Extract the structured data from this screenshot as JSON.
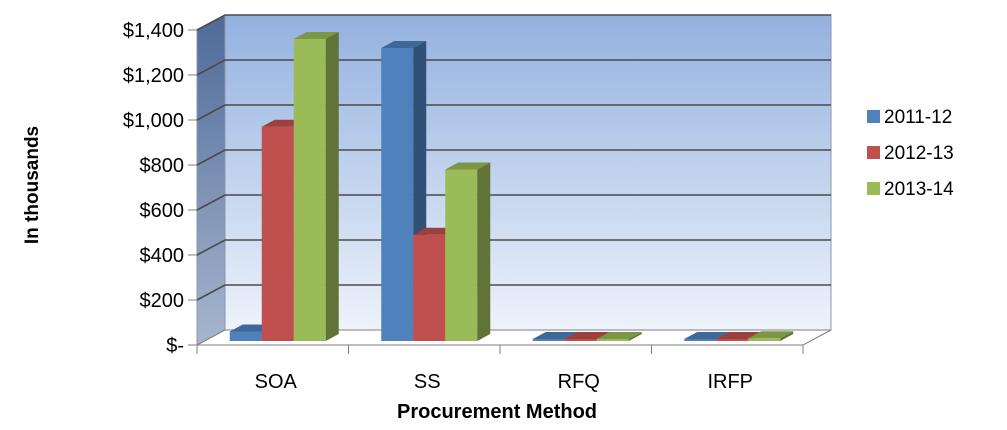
{
  "chart_data": {
    "type": "bar",
    "title": "",
    "xlabel": "Procurement Method",
    "ylabel": "In thousands",
    "categories": [
      "SOA",
      "SS",
      "RFQ",
      "IRFP"
    ],
    "series": [
      {
        "name": "2011-12",
        "values": [
          60,
          1320,
          0,
          0
        ],
        "color": "#4F81BD"
      },
      {
        "name": "2012-13",
        "values": [
          970,
          490,
          0,
          10
        ],
        "color": "#C0504D"
      },
      {
        "name": "2013-14",
        "values": [
          1360,
          780,
          0,
          30
        ],
        "color": "#9BBB59"
      }
    ],
    "ylim": [
      0,
      1400
    ],
    "yticks": [
      0,
      200,
      400,
      600,
      800,
      1000,
      1200,
      1400
    ],
    "ytick_labels": [
      "$-",
      "$200",
      "$400",
      "$600",
      "$800",
      "$1,000",
      "$1,200",
      "$1,400"
    ],
    "grid": true,
    "legend_position": "right",
    "style": "3d-column"
  }
}
